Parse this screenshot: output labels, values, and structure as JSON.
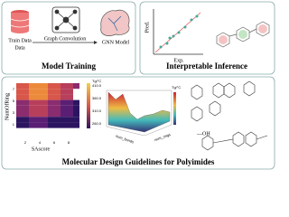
{
  "model_training": {
    "title": "Model Training",
    "train_data": "Train Data",
    "graph_convolution": "Graph Convolution",
    "gnn_model": "GNN Model"
  },
  "interpretable_inference": {
    "title": "Interpretable Inference",
    "y_label": "Pred.",
    "x_label": "Exp."
  },
  "design_guidelines": {
    "title": "Molecular Design Guidelines for Polyimides",
    "heatmap": {
      "y_label": "NumOfRing",
      "x_label": "SAscore",
      "colorbar_label": "Tg/°C",
      "colorbar_ticks": [
        "410.0",
        "360.0",
        "310.0",
        "260.0"
      ],
      "x_ticks": [
        "2",
        "4",
        "6",
        "8"
      ],
      "y_ticks": [
        "1",
        "3",
        "5",
        "7"
      ]
    },
    "surface": {
      "x_label": "num_bonds",
      "y_label": "num_rings",
      "colorbar_label": "Tg/°C"
    },
    "substituent": "—OH"
  }
}
